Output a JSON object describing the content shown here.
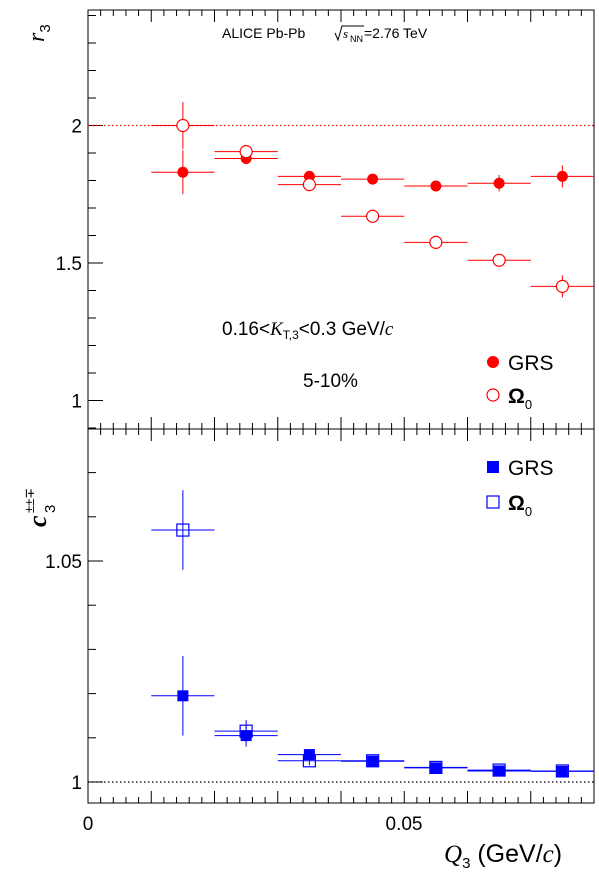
{
  "header": "ALICE Pb-Pb",
  "energy": {
    "sqrt_label": "s",
    "sub": "NN",
    "value": "=2.76 TeV"
  },
  "kt_label": {
    "pre": "0.16<",
    "var": "K",
    "sub": "T,3",
    "post": "<0.3 GeV/",
    "unit_var": "c"
  },
  "centrality": "5-10%",
  "x_axis": {
    "var": "Q",
    "sub": "3",
    "unit": " (GeV/",
    "unit_var": "c",
    "close": ")",
    "ticks": [
      "0",
      "0.05"
    ]
  },
  "colors": {
    "top": "#ff0000",
    "bottom": "#0000ff",
    "ref_top": "#ff0000",
    "ref_bottom": "#000000"
  },
  "chart_data": [
    {
      "type": "scatter",
      "ylabel": {
        "var": "r",
        "sub": "3"
      },
      "xlim": [
        0,
        0.08
      ],
      "ylim": [
        0.9,
        2.4
      ],
      "yticks": [
        {
          "v": 1,
          "label": "1"
        },
        {
          "v": 1.5,
          "label": "1.5"
        },
        {
          "v": 2,
          "label": "2"
        }
      ],
      "reference_line": 2,
      "x": [
        0.015,
        0.025,
        0.035,
        0.045,
        0.055,
        0.065,
        0.075
      ],
      "xerr": 0.005,
      "legend_position": "bottom-right",
      "series": [
        {
          "name": "GRS",
          "marker": "filled-circle",
          "values": [
            1.83,
            1.88,
            1.815,
            1.805,
            1.78,
            1.79,
            1.815
          ],
          "yerr": [
            0.08,
            0.02,
            0.02,
            0.015,
            0.015,
            0.03,
            0.04
          ]
        },
        {
          "name": "Ω",
          "name_sub": "0",
          "marker": "open-circle",
          "values": [
            2.0,
            1.905,
            1.785,
            1.67,
            1.575,
            1.51,
            1.415
          ],
          "yerr": [
            0.085,
            0.02,
            0.02,
            0.015,
            0.015,
            0.02,
            0.04
          ]
        }
      ]
    },
    {
      "type": "scatter",
      "ylabel": {
        "var": "c",
        "sub": "3",
        "sup": "±±∓"
      },
      "xlim": [
        0,
        0.08
      ],
      "ylim": [
        0.995,
        1.07
      ],
      "yticks": [
        {
          "v": 1,
          "label": "1"
        },
        {
          "v": 1.05,
          "label": "1.05"
        }
      ],
      "reference_line": 1,
      "x": [
        0.015,
        0.025,
        0.035,
        0.045,
        0.055,
        0.065,
        0.075
      ],
      "xerr": 0.005,
      "legend_position": "top-right",
      "series": [
        {
          "name": "GRS",
          "marker": "filled-square",
          "values": [
            1.0195,
            1.0105,
            1.0062,
            1.0047,
            1.0032,
            1.0025,
            1.0024
          ],
          "yerr": [
            0.009,
            0.0025,
            0.001,
            0.001,
            0.0008,
            0.0008,
            0.0008
          ]
        },
        {
          "name": "Ω",
          "name_sub": "0",
          "marker": "open-square",
          "values": [
            1.057,
            1.0115,
            1.0048,
            1.0048,
            1.0033,
            1.0027,
            1.0025
          ],
          "yerr": [
            0.009,
            0.0025,
            0.001,
            0.001,
            0.0008,
            0.0008,
            0.0008
          ]
        }
      ]
    }
  ]
}
